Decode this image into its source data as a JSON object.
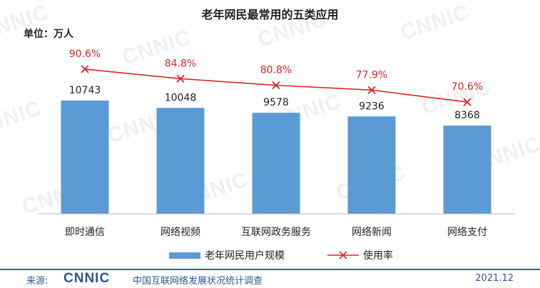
{
  "chart_data": {
    "type": "bar",
    "title": "老年网民最常用的五类应用",
    "unit_label": "单位：万人",
    "categories": [
      "即时通信",
      "网络视频",
      "互联网政务服务",
      "网络新闻",
      "网络支付"
    ],
    "series": [
      {
        "name": "老年网民用户规模",
        "type": "bar",
        "color": "#5b9bd5",
        "values": [
          10743,
          10048,
          9578,
          9236,
          8368
        ],
        "labels": [
          "10743",
          "10048",
          "9578",
          "9236",
          "8368"
        ]
      },
      {
        "name": "使用率",
        "type": "line",
        "color": "#d62728",
        "marker": "x",
        "values": [
          90.6,
          84.8,
          80.8,
          77.9,
          70.6
        ],
        "labels": [
          "90.6%",
          "84.8%",
          "80.8%",
          "77.9%",
          "70.6%"
        ]
      }
    ],
    "legend_position": "bottom",
    "grid": false
  },
  "watermark": "CNNIC",
  "footer": {
    "source_label": "来源:",
    "logo_text": "CNNIC",
    "org": "中国互联网络发展状况统计调查",
    "date": "2021.12"
  }
}
